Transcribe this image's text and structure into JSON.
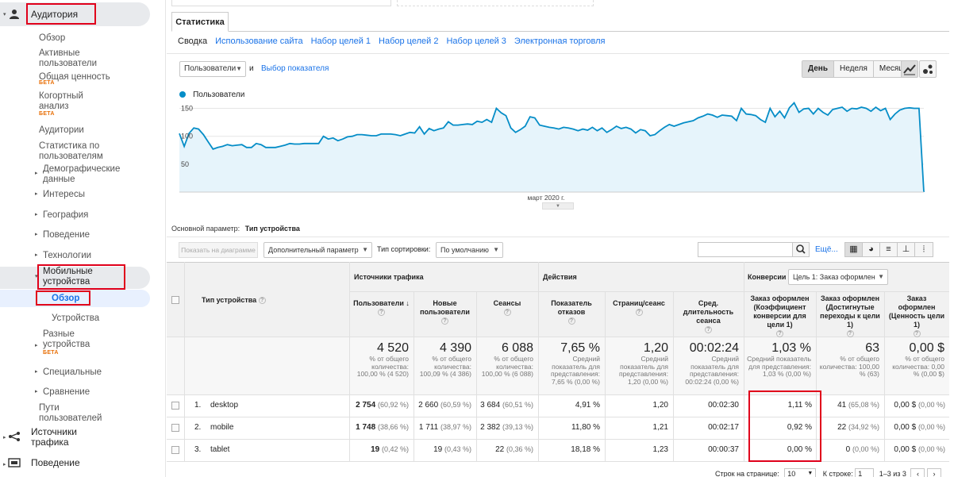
{
  "sidebar": {
    "audience": "Аудитория",
    "items": [
      {
        "label": "Обзор"
      },
      {
        "label": "Активные пользователи"
      },
      {
        "label": "Общая ценность"
      },
      {
        "label": "Когортный анализ"
      },
      {
        "label": "Аудитории"
      },
      {
        "label": "Статистика по пользователям"
      },
      {
        "label": "Демографические данные"
      },
      {
        "label": "Интересы"
      },
      {
        "label": "География"
      },
      {
        "label": "Поведение"
      },
      {
        "label": "Технологии"
      },
      {
        "label": "Мобильные устройства"
      },
      {
        "label": "Обзор"
      },
      {
        "label": "Устройства"
      },
      {
        "label": "Разные устройства"
      },
      {
        "label": "Специальные"
      },
      {
        "label": "Сравнение"
      },
      {
        "label": "Пути пользователей"
      }
    ],
    "beta": "БЕТА",
    "traffic_sources": "Источники трафика",
    "behavior": "Поведение"
  },
  "tabs": {
    "statistics": "Статистика",
    "subtabs": [
      "Сводка",
      "Использование сайта",
      "Набор целей 1",
      "Набор целей 2",
      "Набор целей 3",
      "Электронная торговля"
    ]
  },
  "chart_controls": {
    "metric_select": "Пользователи",
    "and": "и",
    "choose_metric": "Выбор показателя",
    "day": "День",
    "week": "Неделя",
    "month": "Месяц"
  },
  "chart_data": {
    "type": "line",
    "legend": "Пользователи",
    "x_label": "март 2020 г.",
    "y_ticks": [
      150,
      100,
      50
    ],
    "ylim": [
      0,
      165
    ],
    "values": [
      105,
      82,
      105,
      115,
      113,
      103,
      90,
      77,
      80,
      82,
      85,
      83,
      84,
      85,
      80,
      80,
      87,
      85,
      80,
      80,
      80,
      82,
      84,
      87,
      86,
      86,
      87,
      87,
      87,
      87,
      100,
      95,
      97,
      92,
      95,
      99,
      100,
      103,
      103,
      102,
      101,
      101,
      104,
      104,
      104,
      103,
      101,
      104,
      107,
      106,
      117,
      104,
      114,
      110,
      113,
      115,
      126,
      120,
      120,
      121,
      122,
      121,
      127,
      125,
      130,
      125,
      150,
      142,
      137,
      115,
      107,
      112,
      118,
      135,
      133,
      120,
      118,
      116,
      115,
      113,
      116,
      115,
      113,
      110,
      113,
      111,
      116,
      110,
      115,
      107,
      112,
      118,
      114,
      116,
      113,
      106,
      112,
      110,
      101,
      103,
      110,
      116,
      121,
      118,
      121,
      124,
      126,
      128,
      133,
      136,
      140,
      138,
      134,
      138,
      137,
      136,
      128,
      150,
      140,
      139,
      137,
      130,
      125,
      150,
      135,
      145,
      133,
      151,
      160,
      143,
      149,
      150,
      140,
      150,
      143,
      138,
      148,
      150,
      152,
      145,
      150,
      149,
      152,
      150,
      145,
      152,
      146,
      150,
      130,
      140,
      147,
      150,
      151,
      150,
      150,
      0
    ]
  },
  "dimension": {
    "label": "Основной параметр:",
    "value": "Тип устройства"
  },
  "table_controls": {
    "plot_button": "Показать на диаграмме",
    "secondary_dim": "Дополнительный параметр",
    "sort_type_label": "Тип сортировки:",
    "sort_type": "По умолчанию",
    "more": "Ещё..."
  },
  "table": {
    "col_device": "Тип устройства",
    "group_acq": "Источники трафика",
    "group_beh": "Действия",
    "group_conv": "Конверсии",
    "goal_select": "Цель 1: Заказ оформлен",
    "headers": [
      "Пользователи",
      "Новые пользователи",
      "Сеансы",
      "Показатель отказов",
      "Страниц/сеанс",
      "Сред. длительность сеанса",
      "Заказ оформлен (Коэффициент конверсии для цели 1)",
      "Заказ оформлен (Достигнутые переходы к цели 1)",
      "Заказ оформлен (Ценность цели 1)"
    ],
    "totals": [
      {
        "big": "4 520",
        "small": "% от общего количества: 100,00 % (4 520)"
      },
      {
        "big": "4 390",
        "small": "% от общего количества: 100,09 % (4 386)"
      },
      {
        "big": "6 088",
        "small": "% от общего количества: 100,00 % (6 088)"
      },
      {
        "big": "7,65 %",
        "small": "Средний показатель для представления: 7,65 % (0,00 %)"
      },
      {
        "big": "1,20",
        "small": "Средний показатель для представления: 1,20 (0,00 %)"
      },
      {
        "big": "00:02:24",
        "small": "Средний показатель для представления: 00:02:24 (0,00 %)"
      },
      {
        "big": "1,03 %",
        "small": "Средний показатель для представления: 1,03 % (0,00 %)"
      },
      {
        "big": "63",
        "small": "% от общего количества: 100,00 % (63)"
      },
      {
        "big": "0,00 $",
        "small": "% от общего количества: 0,00 % (0,00 $)"
      }
    ],
    "rows": [
      {
        "idx": "1.",
        "name": "desktop",
        "users": "2 754",
        "users_pct": "(60,92 %)",
        "new": "2 660",
        "new_pct": "(60,59 %)",
        "sessions": "3 684",
        "sessions_pct": "(60,51 %)",
        "bounce": "4,91 %",
        "pages": "1,20",
        "duration": "00:02:30",
        "conv": "1,11 %",
        "goals": "41",
        "goals_pct": "(65,08 %)",
        "value": "0,00 $",
        "value_pct": "(0,00 %)"
      },
      {
        "idx": "2.",
        "name": "mobile",
        "users": "1 748",
        "users_pct": "(38,66 %)",
        "new": "1 711",
        "new_pct": "(38,97 %)",
        "sessions": "2 382",
        "sessions_pct": "(39,13 %)",
        "bounce": "11,80 %",
        "pages": "1,21",
        "duration": "00:02:17",
        "conv": "0,92 %",
        "goals": "22",
        "goals_pct": "(34,92 %)",
        "value": "0,00 $",
        "value_pct": "(0,00 %)"
      },
      {
        "idx": "3.",
        "name": "tablet",
        "users": "19",
        "users_pct": "(0,42 %)",
        "new": "19",
        "new_pct": "(0,43 %)",
        "sessions": "22",
        "sessions_pct": "(0,36 %)",
        "bounce": "18,18 %",
        "pages": "1,23",
        "duration": "00:00:37",
        "conv": "0,00 %",
        "goals": "0",
        "goals_pct": "(0,00 %)",
        "value": "0,00 $",
        "value_pct": "(0,00 %)"
      }
    ]
  },
  "pagination": {
    "rows_label": "Строк на странице:",
    "rows_value": "10",
    "goto_label": "К строке:",
    "goto_value": "1",
    "range": "1–3 из 3"
  }
}
